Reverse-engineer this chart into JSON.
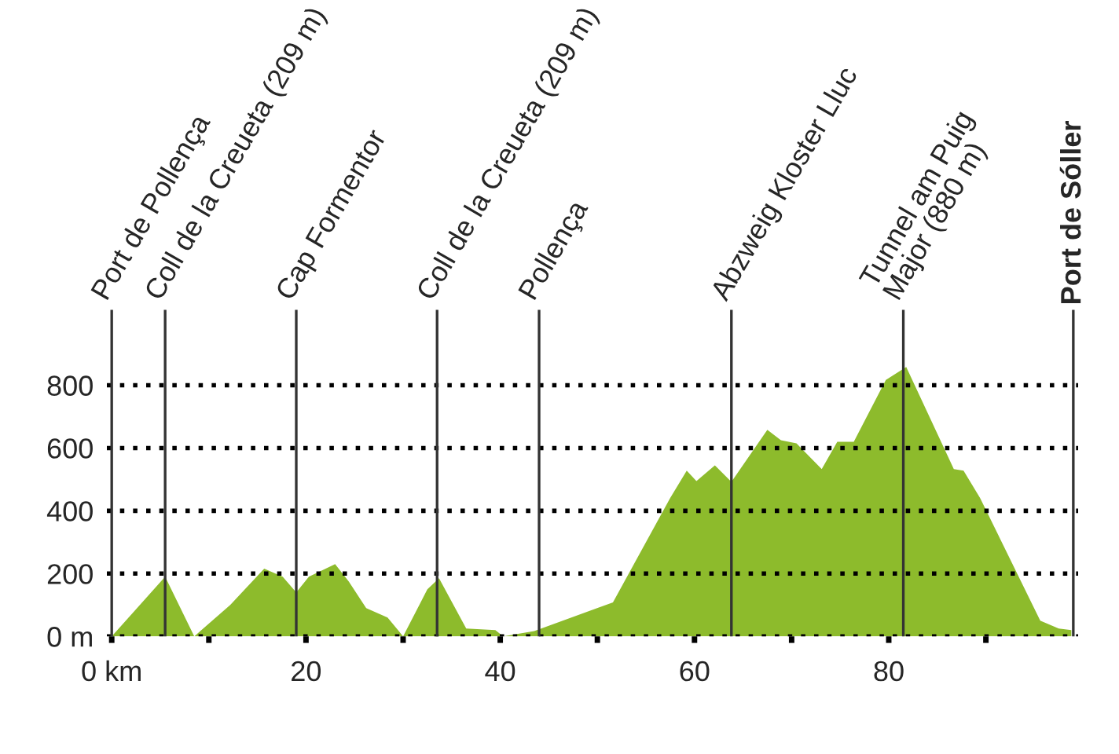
{
  "chart_data": {
    "type": "area",
    "x": [
      0,
      5.5,
      8.5,
      12.2,
      15.7,
      17.6,
      19,
      20.3,
      23,
      24.4,
      26.2,
      28.4,
      30,
      32.5,
      33.7,
      36.5,
      39.5,
      40.3,
      43.5,
      51.6,
      57.5,
      59.2,
      60.2,
      62.1,
      63.8,
      67.5,
      68.9,
      70.5,
      73.1,
      74.7,
      76.4,
      79.7,
      81.8,
      86.7,
      87.7,
      89.4,
      95.6,
      97.5,
      98.8
    ],
    "series": [
      {
        "color": "#8dbb2c",
        "values": [
          0,
          190,
          0,
          100,
          216,
          190,
          140,
          190,
          230,
          175,
          90,
          60,
          0,
          150,
          185,
          25,
          20,
          0,
          17,
          108,
          441,
          528,
          495,
          545,
          492,
          658,
          625,
          615,
          533,
          620,
          620,
          817,
          858,
          533,
          528,
          441,
          50,
          25,
          20
        ]
      }
    ],
    "xlim": [
      -0.5,
      99.5
    ],
    "xticks": [
      {
        "value": 0,
        "label": "0 km"
      },
      {
        "value": 10,
        "label": null
      },
      {
        "value": 20,
        "label": "20"
      },
      {
        "value": 30,
        "label": null
      },
      {
        "value": 40,
        "label": "40"
      },
      {
        "value": 50,
        "label": null
      },
      {
        "value": 60,
        "label": "60"
      },
      {
        "value": 70,
        "label": null
      },
      {
        "value": 80,
        "label": "80"
      },
      {
        "value": 90,
        "label": null
      }
    ],
    "ylim": [
      0,
      1040
    ],
    "yticks": [
      {
        "value": 0,
        "label": "0 m"
      },
      200,
      400,
      600,
      800
    ],
    "grid": "y",
    "ref_lines": [
      {
        "axis": "x",
        "value": 0,
        "label": "Port de Pollença"
      },
      {
        "axis": "x",
        "value": 5.5,
        "label": "Coll de la Creueta (209 m)"
      },
      {
        "axis": "x",
        "value": 19,
        "label": "Cap Formentor"
      },
      {
        "axis": "x",
        "value": 33.5,
        "label": "Coll de la Creueta (209 m)"
      },
      {
        "axis": "x",
        "value": 44,
        "label": "Pollença"
      },
      {
        "axis": "x",
        "value": 63.8,
        "label": "Abzweig Kloster Lluc"
      },
      {
        "axis": "x",
        "value": 81.5,
        "label": "Tunnel am Puig\nMajor (880 m)"
      },
      {
        "axis": "x",
        "value": 99,
        "label": "Port de Sóller"
      }
    ]
  }
}
